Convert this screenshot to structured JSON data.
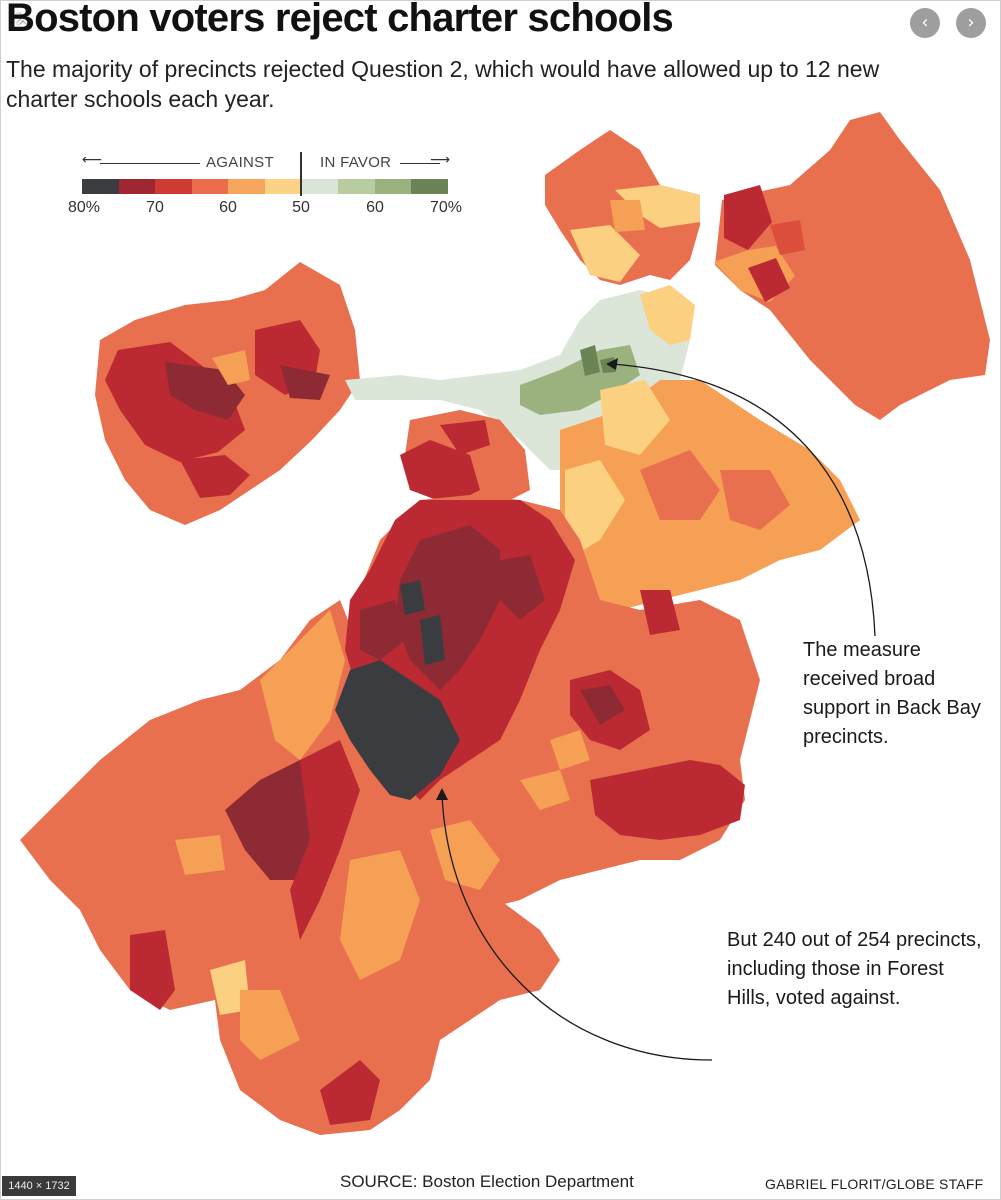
{
  "header": {
    "title": "Boston voters reject charter schools",
    "subtitle": "The majority of precincts rejected Question 2, which would have allowed up to 12 new charter schools each year.",
    "close_glyph": "✕",
    "prev_glyph": "‹",
    "next_glyph": "›"
  },
  "legend": {
    "left_arrow": "⟵",
    "right_arrow": "⟶",
    "against_label": "AGAINST",
    "infavor_label": "IN FAVOR",
    "ticks": [
      "80%",
      "70",
      "60",
      "50",
      "60",
      "70%"
    ],
    "colors": [
      "#3a3c40",
      "#a02631",
      "#cf3a35",
      "#ec6c4e",
      "#f5a55c",
      "#fbd286",
      "#d9e5d6",
      "#b9cc9f",
      "#9bb27f",
      "#6b8456"
    ]
  },
  "colors": {
    "very_strong_against": "#3a3c40",
    "strong_against": "#8e2a33",
    "against_70": "#bb2a33",
    "against_65": "#dc4f3d",
    "against_60": "#e8704f",
    "against_55": "#f5a055",
    "against_50": "#fbd080",
    "favor_50": "#dce6d8",
    "favor_60": "#9bb27f",
    "favor_70": "#6b8456"
  },
  "annotations": {
    "back_bay": "The measure received broad support in Back Bay precincts.",
    "forest_hills": "But 240 out of 254 precincts, including those in Forest Hills, voted against."
  },
  "footer": {
    "image_size": "1440 × 1732",
    "source": "SOURCE: Boston Election Department",
    "credit": "GABRIEL FLORIT/GLOBE STAFF"
  }
}
